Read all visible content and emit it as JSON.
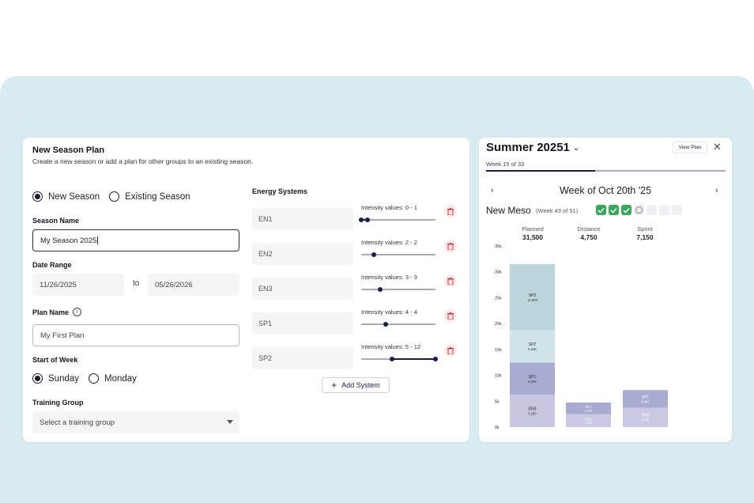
{
  "form": {
    "title": "New Season Plan",
    "subtitle": "Create a new season or add a plan for other groups to an existing season.",
    "mode_options": [
      "New Season",
      "Existing Season"
    ],
    "season_name_label": "Season Name",
    "season_name_value": "My Season 2025",
    "date_range_label": "Date Range",
    "start_date": "11/26/2025",
    "date_to": "to",
    "end_date": "05/26/2026",
    "plan_name_label": "Plan Name",
    "plan_name_info": "i",
    "plan_name_value": "My First Plan",
    "start_of_week_label": "Start of Week",
    "week_options": [
      "Sunday",
      "Monday"
    ],
    "training_group_label": "Training Group",
    "training_group_placeholder": "Select a training group"
  },
  "energy": {
    "title": "Energy Systems",
    "systems": [
      {
        "name": "EN1",
        "intensity": "Intensity values: 0 - 1",
        "min": 0,
        "max": 1
      },
      {
        "name": "EN2",
        "intensity": "Intensity values: 2 - 2",
        "min": 2,
        "max": 2
      },
      {
        "name": "EN3",
        "intensity": "Intensity values: 3 - 3",
        "min": 3,
        "max": 3
      },
      {
        "name": "SP1",
        "intensity": "Intensity values: 4 - 4",
        "min": 4,
        "max": 4
      },
      {
        "name": "SP2",
        "intensity": "Intensity values: 5 - 12",
        "min": 5,
        "max": 12
      }
    ],
    "slider_scale_max": 12,
    "add_label": "Add System"
  },
  "summary": {
    "season": "Summer 20251",
    "view_plan": "View Plan",
    "close": "✕",
    "week_progress_text": "Week 15 of 33",
    "week_current": 15,
    "week_total": 33,
    "prev": "‹",
    "next": "›",
    "week_heading": "Week of Oct 20th '25",
    "meso_name": "New Meso",
    "meso_week": "(Week 43 of 51)",
    "meso_status": [
      "done",
      "done",
      "done",
      "current",
      "empty",
      "empty",
      "empty"
    ],
    "stats": [
      {
        "label": "Planned",
        "value": "31,500"
      },
      {
        "label": "Distance",
        "value": "4,750"
      },
      {
        "label": "Sprint",
        "value": "7,150"
      }
    ]
  },
  "colors": {
    "EN3": "#c7c8e0",
    "SP1": "#a9abd1",
    "SP2": "#cfe3e8",
    "SP3": "#bdd6db",
    "EN2": "#c9cae2"
  },
  "chart_data": {
    "type": "bar",
    "stacked": true,
    "categories": [
      "Planned",
      "Distance",
      "Sprint"
    ],
    "yticks": [
      "35k",
      "30k",
      "25k",
      "20k",
      "15k",
      "10k",
      "5k",
      "0k"
    ],
    "ylim": [
      0,
      35000
    ],
    "bars": [
      {
        "category": "Planned",
        "segments": [
          {
            "name": "EN3",
            "value": 6250,
            "label": "6,250"
          },
          {
            "name": "SP1",
            "value": 6200,
            "label": "6,200"
          },
          {
            "name": "SP2",
            "value": 6250,
            "label": "6,250"
          },
          {
            "name": "SP3",
            "value": 12800,
            "label": "12,800"
          }
        ]
      },
      {
        "category": "Distance",
        "segments": [
          {
            "name": "EN2",
            "value": 2500,
            "label": "2,500"
          },
          {
            "name": "SP1",
            "value": 2250,
            "label": "2,250"
          }
        ]
      },
      {
        "category": "Sprint",
        "segments": [
          {
            "name": "EN2",
            "value": 3750,
            "label": "3,750"
          },
          {
            "name": "SP1",
            "value": 3400,
            "label": "3,400"
          }
        ]
      }
    ]
  }
}
